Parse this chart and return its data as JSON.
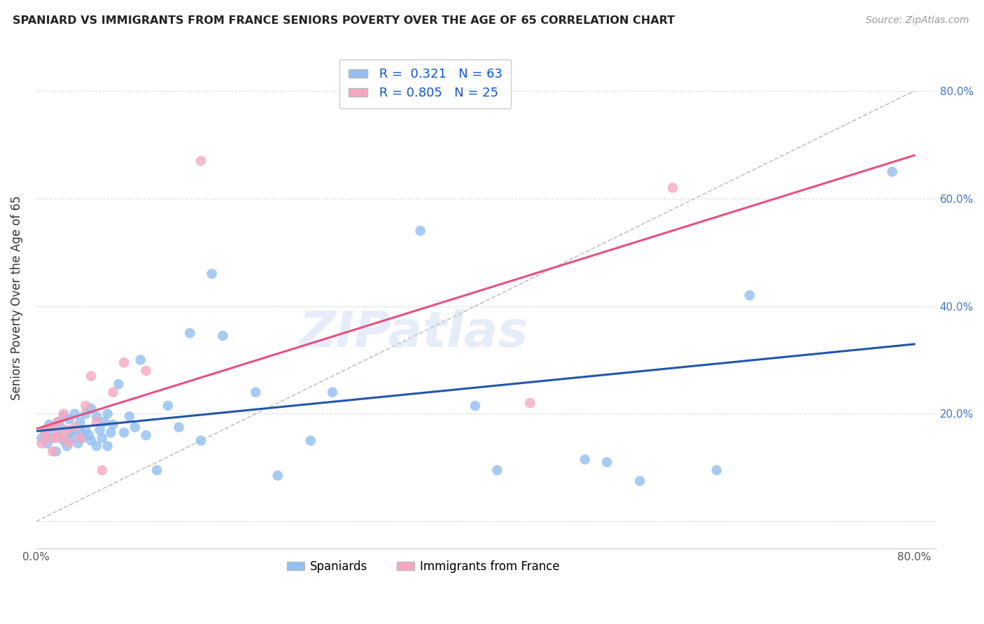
{
  "title": "SPANIARD VS IMMIGRANTS FROM FRANCE SENIORS POVERTY OVER THE AGE OF 65 CORRELATION CHART",
  "source": "Source: ZipAtlas.com",
  "ylabel": "Seniors Poverty Over the Age of 65",
  "xlim": [
    0.0,
    0.82
  ],
  "ylim": [
    -0.05,
    0.88
  ],
  "x_tick_positions": [
    0.0,
    0.1,
    0.2,
    0.3,
    0.4,
    0.5,
    0.6,
    0.7,
    0.8
  ],
  "x_tick_labels": [
    "0.0%",
    "",
    "",
    "",
    "",
    "",
    "",
    "",
    "80.0%"
  ],
  "y_tick_positions": [
    0.0,
    0.2,
    0.4,
    0.6,
    0.8
  ],
  "y_tick_labels_right": [
    "",
    "20.0%",
    "40.0%",
    "60.0%",
    "80.0%"
  ],
  "spaniards_R": "0.321",
  "spaniards_N": "63",
  "france_R": "0.805",
  "france_N": "25",
  "spaniards_color": "#92BEF0",
  "france_color": "#F5A8C0",
  "line_spain_color": "#2255AA",
  "line_france_color": "#E85080",
  "diagonal_color": "#BBBBBB",
  "background_color": "#FFFFFF",
  "grid_color": "#DDDDDD",
  "watermark": "ZIPatlas",
  "legend_spaniards": "Spaniards",
  "legend_france": "Immigrants from France",
  "spaniards_x": [
    0.005,
    0.008,
    0.01,
    0.01,
    0.012,
    0.015,
    0.015,
    0.018,
    0.02,
    0.02,
    0.022,
    0.025,
    0.025,
    0.028,
    0.03,
    0.03,
    0.032,
    0.035,
    0.035,
    0.038,
    0.04,
    0.04,
    0.042,
    0.045,
    0.045,
    0.048,
    0.05,
    0.05,
    0.055,
    0.055,
    0.058,
    0.06,
    0.062,
    0.065,
    0.065,
    0.068,
    0.07,
    0.075,
    0.08,
    0.085,
    0.09,
    0.095,
    0.1,
    0.11,
    0.12,
    0.13,
    0.14,
    0.15,
    0.16,
    0.17,
    0.2,
    0.22,
    0.25,
    0.27,
    0.35,
    0.4,
    0.42,
    0.5,
    0.52,
    0.55,
    0.62,
    0.65,
    0.78
  ],
  "spaniards_y": [
    0.155,
    0.17,
    0.145,
    0.165,
    0.18,
    0.155,
    0.175,
    0.13,
    0.16,
    0.185,
    0.175,
    0.15,
    0.195,
    0.14,
    0.165,
    0.19,
    0.155,
    0.17,
    0.2,
    0.145,
    0.165,
    0.185,
    0.155,
    0.17,
    0.2,
    0.16,
    0.15,
    0.21,
    0.14,
    0.195,
    0.17,
    0.155,
    0.185,
    0.14,
    0.2,
    0.165,
    0.18,
    0.255,
    0.165,
    0.195,
    0.175,
    0.3,
    0.16,
    0.095,
    0.215,
    0.175,
    0.35,
    0.15,
    0.46,
    0.345,
    0.24,
    0.085,
    0.15,
    0.24,
    0.54,
    0.215,
    0.095,
    0.115,
    0.11,
    0.075,
    0.095,
    0.42,
    0.65
  ],
  "france_x": [
    0.005,
    0.008,
    0.01,
    0.012,
    0.015,
    0.015,
    0.018,
    0.02,
    0.02,
    0.025,
    0.025,
    0.028,
    0.03,
    0.035,
    0.04,
    0.045,
    0.05,
    0.055,
    0.06,
    0.07,
    0.08,
    0.1,
    0.15,
    0.45,
    0.58
  ],
  "france_y": [
    0.145,
    0.165,
    0.155,
    0.175,
    0.13,
    0.175,
    0.155,
    0.16,
    0.185,
    0.155,
    0.2,
    0.17,
    0.145,
    0.175,
    0.155,
    0.215,
    0.27,
    0.185,
    0.095,
    0.24,
    0.295,
    0.28,
    0.67,
    0.22,
    0.62
  ]
}
